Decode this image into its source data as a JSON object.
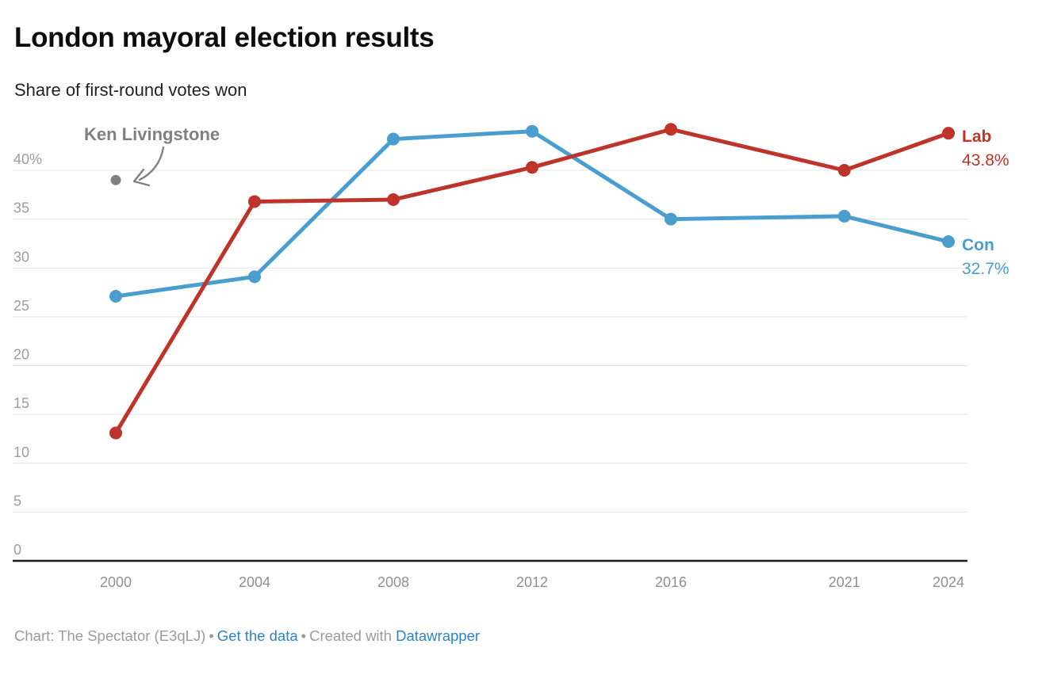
{
  "header": {
    "title": "London mayoral election results",
    "subtitle": "Share of first-round votes won"
  },
  "chart_data": {
    "type": "line",
    "title": "London mayoral election results",
    "subtitle": "Share of first-round votes won",
    "xlabel": "",
    "ylabel": "",
    "x": [
      2000,
      2004,
      2008,
      2012,
      2016,
      2021,
      2024
    ],
    "x_tick_labels": [
      "2000",
      "2004",
      "2008",
      "2012",
      "2016",
      "2021",
      "2024"
    ],
    "x_scale": "time-linear",
    "ylim": [
      0,
      45.5
    ],
    "grid": "horizontal",
    "legend_position": "end-of-line",
    "y_ticks": [
      {
        "value": 40,
        "label": "40%"
      },
      {
        "value": 35,
        "label": "35"
      },
      {
        "value": 30,
        "label": "30"
      },
      {
        "value": 25,
        "label": "25"
      },
      {
        "value": 20,
        "label": "20"
      },
      {
        "value": 15,
        "label": "15"
      },
      {
        "value": 10,
        "label": "10"
      },
      {
        "value": 5,
        "label": "5"
      },
      {
        "value": 0,
        "label": "0"
      }
    ],
    "series": [
      {
        "name": "Con",
        "color": "#4a9dcf",
        "values": [
          27.1,
          29.1,
          43.2,
          44.0,
          35.0,
          35.3,
          32.7
        ],
        "end_label": "Con",
        "end_value_label": "32.7%"
      },
      {
        "name": "Lab",
        "color": "#bf342a",
        "values": [
          13.1,
          36.8,
          37.0,
          40.3,
          44.2,
          40.0,
          43.8
        ],
        "end_label": "Lab",
        "end_value_label": "43.8%"
      }
    ],
    "annotation": {
      "label": "Ken Livingstone",
      "year": 2000,
      "value": 39.0,
      "color": "#808080"
    }
  },
  "theme": {
    "grid_color": "#e4e4e4",
    "baseline_color": "#1d1d1d",
    "y_tick_label_color": "#9d9d9d",
    "x_tick_label_color": "#8f8f8f",
    "link_color": "#2c83c9",
    "footer_text_color": "#9b9b9b"
  },
  "footer": {
    "credit": "Chart: The Spectator (E3qLJ)",
    "separator": "•",
    "get_data_label": "Get the data",
    "created_with": "Created with",
    "tool_link_label": "Datawrapper"
  }
}
